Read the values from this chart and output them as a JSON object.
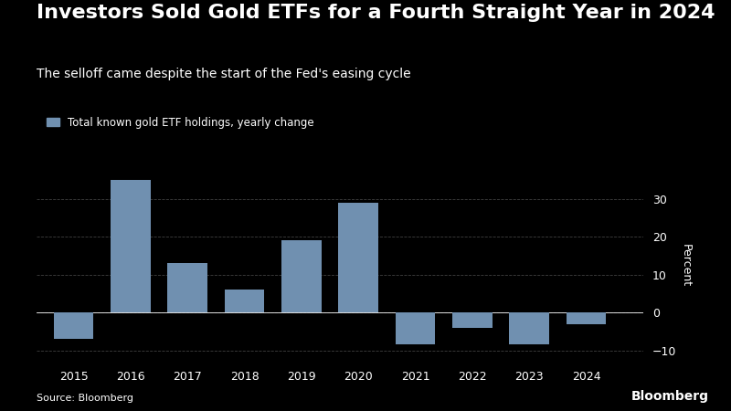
{
  "years": [
    2015,
    2016,
    2017,
    2018,
    2019,
    2020,
    2021,
    2022,
    2023,
    2024
  ],
  "values": [
    -7.0,
    35.0,
    13.0,
    6.0,
    19.0,
    29.0,
    -8.5,
    -4.0,
    -8.5,
    -3.0
  ],
  "bar_color": "#7090b0",
  "background_color": "#000000",
  "text_color": "#ffffff",
  "grid_color": "#404040",
  "title": "Investors Sold Gold ETFs for a Fourth Straight Year in 2024",
  "subtitle": "The selloff came despite the start of the Fed's easing cycle",
  "legend_label": "Total known gold ETF holdings, yearly change",
  "ylabel": "Percent",
  "source": "Source: Bloomberg",
  "bloomberg_label": "Bloomberg",
  "ylim": [
    -13,
    38
  ],
  "yticks": [
    -10,
    0,
    10,
    20,
    30
  ],
  "title_fontsize": 16,
  "subtitle_fontsize": 10,
  "axis_fontsize": 9,
  "legend_fontsize": 8.5
}
